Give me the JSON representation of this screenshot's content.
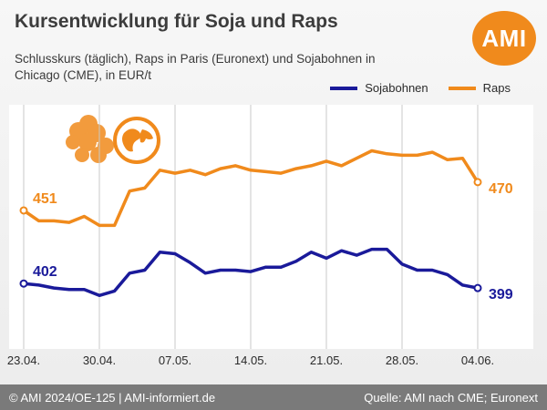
{
  "header": {
    "title": "Kursentwicklung für Soja und Raps",
    "subtitle": "Schlusskurs (täglich), Raps in Paris (Euronext) und Sojabohnen in Chicago (CME), in EUR/t",
    "logo_text": "AMI"
  },
  "footer": {
    "left": "© AMI 2024/OE-125 | AMI-informiert.de",
    "right": "Quelle: AMI nach CME; Euronext"
  },
  "colors": {
    "sojabohnen": "#1a1a9a",
    "raps": "#f08a1c",
    "logo": "#f08a1c"
  },
  "chart_data": {
    "type": "line",
    "x": [
      "23.04.",
      "24.04.",
      "25.04.",
      "26.04.",
      "29.04.",
      "30.04.",
      "01.05.",
      "02.05.",
      "03.05.",
      "06.05.",
      "07.05.",
      "08.05.",
      "09.05.",
      "10.05.",
      "13.05.",
      "14.05.",
      "15.05.",
      "16.05.",
      "17.05.",
      "20.05.",
      "21.05.",
      "22.05.",
      "23.05.",
      "24.05.",
      "27.05.",
      "28.05.",
      "29.05.",
      "30.05.",
      "31.05.",
      "03.06.",
      "04.06."
    ],
    "x_tick_labels": [
      "23.04.",
      "30.04.",
      "07.05.",
      "14.05.",
      "21.05.",
      "28.05.",
      "04.06."
    ],
    "x_tick_dates": [
      "23.04.",
      "30.04.",
      "07.05.",
      "14.05.",
      "21.05.",
      "28.05.",
      "04.06."
    ],
    "y_range": [
      360,
      520
    ],
    "series": [
      {
        "name": "Raps",
        "color": "#f08a1c",
        "start_label": "451",
        "end_label": "470",
        "values": [
          451,
          444,
          444,
          443,
          447,
          441,
          441,
          464,
          466,
          478,
          476,
          478,
          475,
          479,
          481,
          478,
          477,
          476,
          479,
          481,
          484,
          481,
          486,
          491,
          489,
          488,
          488,
          490,
          485,
          486,
          470
        ]
      },
      {
        "name": "Sojabohnen",
        "color": "#1a1a9a",
        "start_label": "402",
        "end_label": "399",
        "values": [
          402,
          401,
          399,
          398,
          398,
          394,
          397,
          409,
          411,
          423,
          422,
          416,
          409,
          411,
          411,
          410,
          413,
          413,
          417,
          423,
          419,
          424,
          421,
          425,
          425,
          415,
          411,
          411,
          408,
          401,
          399
        ]
      }
    ]
  }
}
